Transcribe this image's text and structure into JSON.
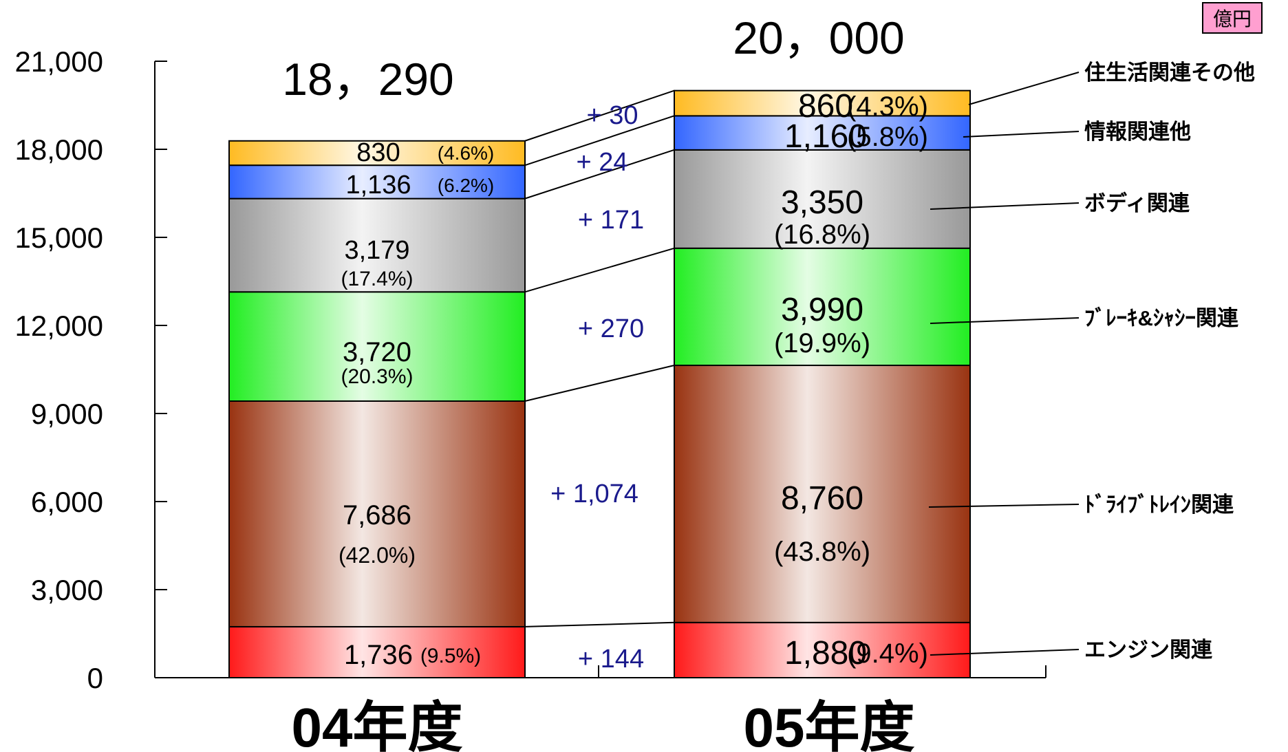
{
  "unit": "億円",
  "chart_data": {
    "type": "bar",
    "stacked": true,
    "categories": [
      "04年度",
      "05年度"
    ],
    "totals": [
      "18，290",
      "20，000"
    ],
    "ylim": [
      0,
      21000
    ],
    "yticks": [
      0,
      3000,
      6000,
      9000,
      12000,
      15000,
      18000,
      21000
    ],
    "ytick_labels": [
      "0",
      "3,000",
      "6,000",
      "9,000",
      "12,000",
      "15,000",
      "18,000",
      "21,000"
    ],
    "series": [
      {
        "name": "エンジン関連",
        "color": "#ff1a1a",
        "values": [
          1736,
          1880
        ],
        "value_labels": [
          "1,736",
          "1,880"
        ],
        "pct_labels": [
          "(9.5%)",
          "(9.4%)"
        ],
        "delta": "+ 144"
      },
      {
        "name": "ﾄﾞﾗｲﾌﾞﾄﾚｲﾝ関連",
        "color": "#993311",
        "values": [
          7686,
          8760
        ],
        "value_labels": [
          "7,686",
          "8,760"
        ],
        "pct_labels": [
          "(42.0%)",
          "(43.8%)"
        ],
        "delta": "+ 1,074"
      },
      {
        "name": "ﾌﾞﾚｰｷ&ｼｬｼｰ関連",
        "color": "#22ee22",
        "values": [
          3720,
          3990
        ],
        "value_labels": [
          "3,720",
          "3,990"
        ],
        "pct_labels": [
          "(20.3%)",
          "(19.9%)"
        ],
        "delta": "+ 270"
      },
      {
        "name": "ボディ関連",
        "color": "#999999",
        "values": [
          3179,
          3350
        ],
        "value_labels": [
          "3,179",
          "3,350"
        ],
        "pct_labels": [
          "(17.4%)",
          "(16.8%)"
        ],
        "delta": "+ 171"
      },
      {
        "name": "情報関連他",
        "color": "#3366ff",
        "values": [
          1136,
          1160
        ],
        "value_labels": [
          "1,136",
          "1,160"
        ],
        "pct_labels": [
          "(6.2%)",
          "(5.8%)"
        ],
        "delta": "+ 24"
      },
      {
        "name": "住生活関連その他",
        "color": "#ffbb22",
        "values": [
          830,
          860
        ],
        "value_labels": [
          "830",
          "860"
        ],
        "pct_labels": [
          "(4.6%)",
          "(4.3%)"
        ],
        "delta": "+ 30"
      }
    ]
  }
}
